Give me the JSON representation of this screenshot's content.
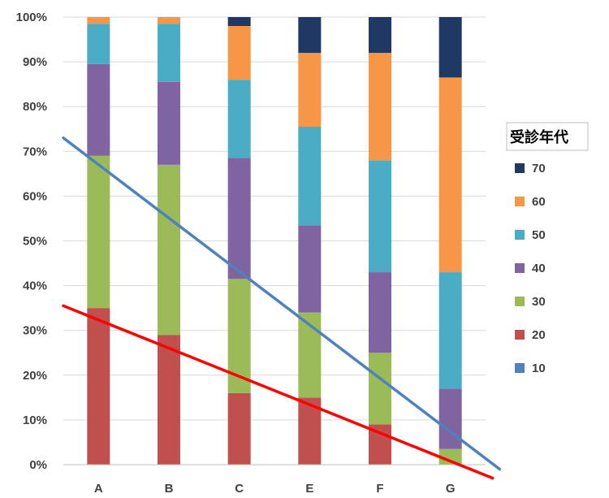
{
  "chart_data": {
    "type": "bar",
    "stacked": true,
    "percent": true,
    "categories": [
      "A",
      "B",
      "C",
      "E",
      "F",
      "G"
    ],
    "series": [
      {
        "name": "10",
        "color": "#4F81BD",
        "values": [
          0,
          0,
          0,
          0,
          0,
          0
        ]
      },
      {
        "name": "20",
        "color": "#C0504D",
        "values": [
          35,
          29,
          16,
          15,
          9,
          0
        ]
      },
      {
        "name": "30",
        "color": "#9BBB59",
        "values": [
          34,
          38,
          25.5,
          19,
          16,
          3.5
        ]
      },
      {
        "name": "40",
        "color": "#8064A2",
        "values": [
          20.5,
          18.5,
          27,
          19.5,
          18,
          13.5
        ]
      },
      {
        "name": "50",
        "color": "#4BACC6",
        "values": [
          9,
          13,
          17.5,
          22,
          25,
          26
        ]
      },
      {
        "name": "60",
        "color": "#F79646",
        "values": [
          1.5,
          1.5,
          12,
          16.5,
          24,
          43.5
        ]
      },
      {
        "name": "70",
        "color": "#1F3864",
        "values": [
          0,
          0,
          2,
          8,
          8,
          13.5
        ]
      }
    ],
    "yticks": [
      "0%",
      "10%",
      "20%",
      "30%",
      "40%",
      "50%",
      "60%",
      "70%",
      "80%",
      "90%",
      "100%"
    ],
    "ylim": [
      0,
      100
    ],
    "grid": true,
    "legend": {
      "title": "受診年代",
      "position": "right",
      "order": [
        "70",
        "60",
        "50",
        "40",
        "30",
        "20",
        "10"
      ]
    },
    "annotations": [
      {
        "type": "trend-line",
        "color": "#4F81BD",
        "from": {
          "x": -0.5,
          "y": 73
        },
        "to": {
          "x": 5.7,
          "y": -1
        }
      },
      {
        "type": "trend-line",
        "color": "#FF0000",
        "from": {
          "x": -0.5,
          "y": 35.5
        },
        "to": {
          "x": 5.6,
          "y": -3
        }
      }
    ]
  }
}
